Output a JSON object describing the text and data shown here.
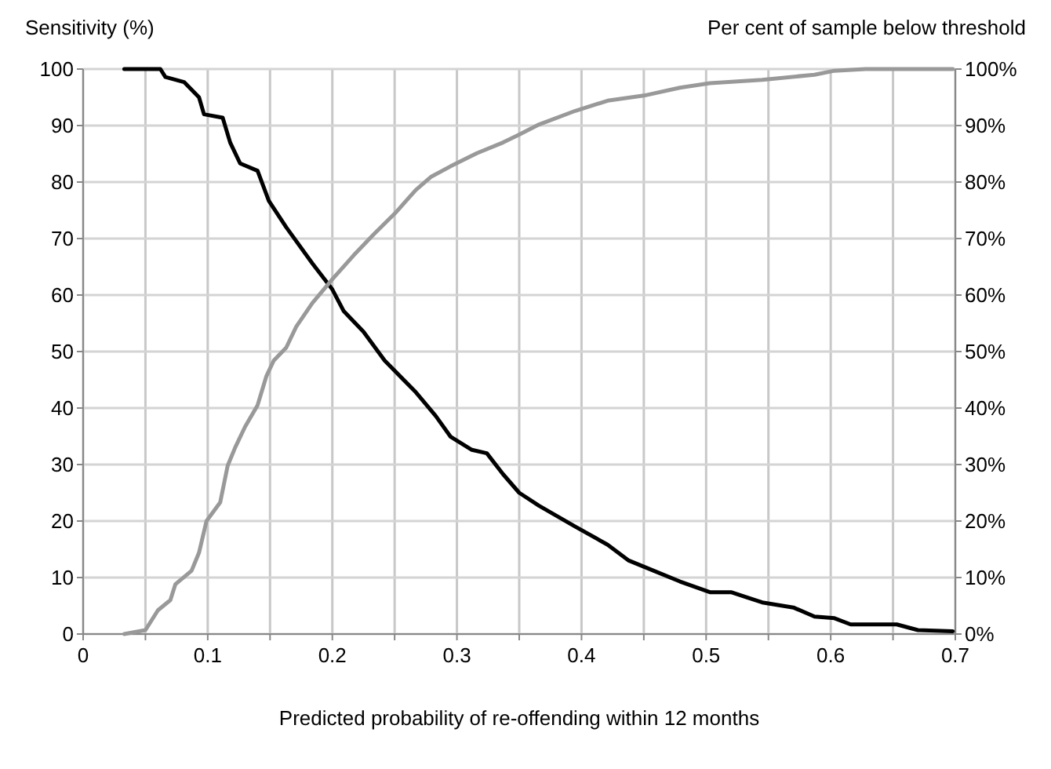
{
  "chart_data": {
    "type": "line",
    "xlabel": "Predicted probability of re-offending within 12 months",
    "ylabel": "Sensitivity (%)",
    "y2label": "Per cent of sample below threshold",
    "xlim": [
      0,
      0.7
    ],
    "xticks": [
      0,
      {
        "value": 0.05,
        "label": null
      },
      0.1,
      {
        "value": 0.15,
        "label": null
      },
      0.2,
      {
        "value": 0.25,
        "label": null
      },
      0.3,
      {
        "value": 0.35,
        "label": null
      },
      0.4,
      {
        "value": 0.45,
        "label": null
      },
      0.5,
      {
        "value": 0.55,
        "label": null
      },
      0.6,
      {
        "value": 0.65,
        "label": null
      },
      0.7
    ],
    "ylim": [
      0,
      100
    ],
    "yticks": [
      0,
      10,
      20,
      30,
      40,
      50,
      60,
      70,
      80,
      90,
      100
    ],
    "y2lim": [
      0,
      100
    ],
    "y2ticks": [
      {
        "value": 0,
        "label": "0%"
      },
      {
        "value": 10,
        "label": "10%"
      },
      {
        "value": 20,
        "label": "20%"
      },
      {
        "value": 30,
        "label": "30%"
      },
      {
        "value": 40,
        "label": "40%"
      },
      {
        "value": 50,
        "label": "50%"
      },
      {
        "value": 60,
        "label": "60%"
      },
      {
        "value": 70,
        "label": "70%"
      },
      {
        "value": 80,
        "label": "80%"
      },
      {
        "value": 90,
        "label": "90%"
      },
      {
        "value": 100,
        "label": "100%"
      }
    ],
    "grid": true,
    "marker": "none",
    "line_style": "solid",
    "series": [
      {
        "color": "#000000",
        "x": [
          0.033,
          0.062,
          0.066,
          0.081,
          0.093,
          0.097,
          0.112,
          0.118,
          0.126,
          0.14,
          0.149,
          0.163,
          0.184,
          0.2,
          0.209,
          0.225,
          0.242,
          0.267,
          0.283,
          0.295,
          0.312,
          0.324,
          0.337,
          0.35,
          0.366,
          0.395,
          0.421,
          0.438,
          0.458,
          0.479,
          0.503,
          0.52,
          0.545,
          0.57,
          0.587,
          0.603,
          0.616,
          0.653,
          0.67,
          0.698
        ],
        "values": [
          100,
          100,
          98.6,
          97.7,
          95,
          92,
          91.4,
          87,
          83.3,
          82,
          76.7,
          72,
          65.6,
          61,
          57.2,
          53.5,
          48.4,
          42.8,
          38.6,
          34.9,
          32.6,
          32,
          28.3,
          25,
          22.7,
          19,
          15.8,
          13,
          11.2,
          9.3,
          7.4,
          7.4,
          5.6,
          4.7,
          3.1,
          2.8,
          1.7,
          1.7,
          0.7,
          0.5
        ]
      },
      {
        "color": "#999999",
        "axis": "y2",
        "x": [
          0.033,
          0.05,
          0.06,
          0.07,
          0.074,
          0.087,
          0.093,
          0.099,
          0.11,
          0.116,
          0.122,
          0.13,
          0.14,
          0.147,
          0.153,
          0.163,
          0.171,
          0.184,
          0.2,
          0.217,
          0.233,
          0.25,
          0.267,
          0.279,
          0.295,
          0.316,
          0.337,
          0.35,
          0.366,
          0.395,
          0.421,
          0.45,
          0.479,
          0.503,
          0.545,
          0.587,
          0.603,
          0.628,
          0.698
        ],
        "values": [
          0,
          0.7,
          4.2,
          6,
          8.8,
          11.2,
          14.4,
          20,
          23.3,
          29.8,
          33,
          36.7,
          40.5,
          45.6,
          48.4,
          50.7,
          54.4,
          58.6,
          62.8,
          67,
          70.7,
          74.4,
          78.6,
          80.9,
          82.8,
          85.1,
          87,
          88.4,
          90.2,
          92.6,
          94.4,
          95.3,
          96.7,
          97.5,
          98.1,
          99,
          99.7,
          100,
          100
        ]
      }
    ]
  }
}
